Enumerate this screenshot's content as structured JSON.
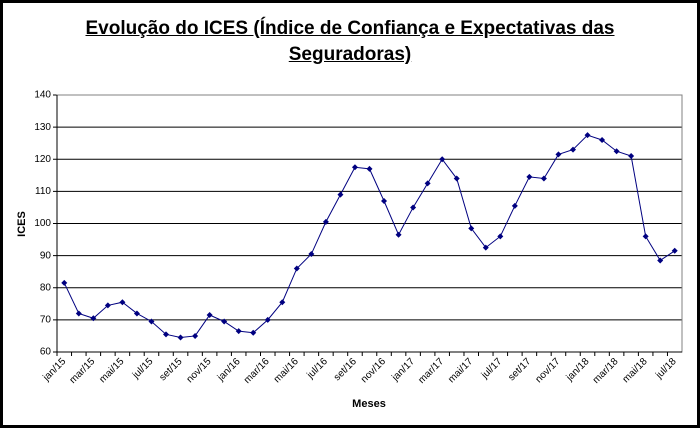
{
  "chart_data": {
    "type": "line",
    "title": "Evolução do ICES (Índice de Confiança e Expectativas das Seguradoras)",
    "x_label": "Meses",
    "y_label": "ICES",
    "categories": [
      "jan/15",
      null,
      "mar/15",
      null,
      "mai/15",
      null,
      "jul/15",
      null,
      "set/15",
      null,
      "nov/15",
      null,
      "jan/16",
      null,
      "mar/16",
      null,
      "mai/16",
      null,
      "jul/16",
      null,
      "set/16",
      null,
      "nov/16",
      null,
      "jan/17",
      null,
      "mar/17",
      null,
      "mai/17",
      null,
      "jul/17",
      null,
      "set/17",
      null,
      "nov/17",
      null,
      "jan/18",
      null,
      "mar/18",
      null,
      "mai/18",
      null,
      "jul/18"
    ],
    "series": [
      {
        "name": "ICES",
        "color": "#000080",
        "values": [
          81.5,
          72,
          70.5,
          74.5,
          75.5,
          72,
          69.5,
          65.5,
          64.5,
          65,
          71.5,
          69.5,
          66.5,
          66,
          70,
          75.5,
          86,
          90.5,
          100.5,
          109,
          117.5,
          117,
          107,
          96.5,
          105,
          112.5,
          120,
          114,
          98.5,
          92.5,
          96,
          105.5,
          114.5,
          114,
          121.5,
          123,
          127.5,
          126,
          122.5,
          121,
          96,
          88.5,
          91.5
        ]
      }
    ],
    "ylim": [
      60,
      140
    ],
    "yticks": [
      60,
      70,
      80,
      90,
      100,
      110,
      120,
      130,
      140
    ],
    "grid": true
  }
}
